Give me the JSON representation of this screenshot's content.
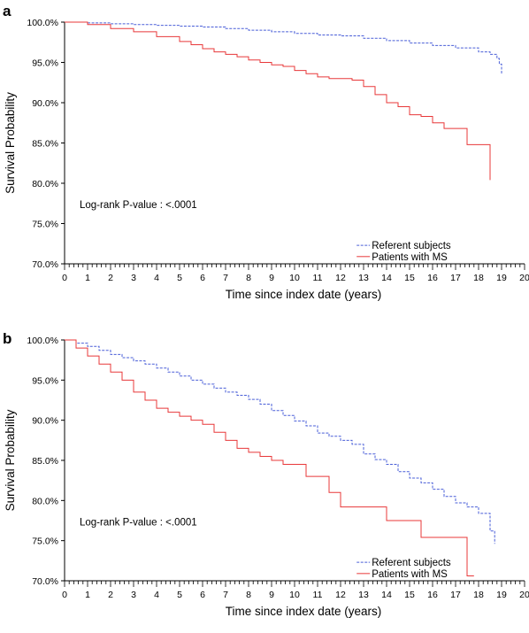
{
  "chart_data": [
    {
      "type": "line",
      "panel": "a",
      "xlabel": "Time since index date (years)",
      "ylabel": "Survival Probability",
      "xlim": [
        0,
        20
      ],
      "ylim": [
        70,
        100
      ],
      "x_ticks": [
        0,
        1,
        2,
        3,
        4,
        5,
        6,
        7,
        8,
        9,
        10,
        11,
        12,
        13,
        14,
        15,
        16,
        17,
        18,
        19,
        20
      ],
      "y_ticks": [
        "100.0%",
        "95.0%",
        "90.0%",
        "85.0%",
        "80.0%",
        "75.0%",
        "70.0%"
      ],
      "y_tick_values": [
        100,
        95,
        90,
        85,
        80,
        75,
        70
      ],
      "grid": false,
      "annotation": "Log-rank P-value : <.0001",
      "legend_position": "bottom-right",
      "series": [
        {
          "name": "Referent subjects",
          "color": "#4a5fd8",
          "style": "dashed",
          "x": [
            0,
            1,
            2,
            3,
            4,
            5,
            6,
            7,
            8,
            9,
            10,
            11,
            12,
            13,
            14,
            15,
            16,
            17,
            18,
            18.5,
            18.8,
            18.9,
            19.0
          ],
          "y": [
            100,
            99.9,
            99.8,
            99.7,
            99.6,
            99.5,
            99.4,
            99.2,
            99.0,
            98.8,
            98.6,
            98.4,
            98.3,
            98.0,
            97.7,
            97.4,
            97.1,
            96.8,
            96.3,
            96.0,
            95.5,
            94.8,
            93.6
          ]
        },
        {
          "name": "Patients with MS",
          "color": "#e8383a",
          "style": "solid",
          "x": [
            0,
            1,
            2,
            3,
            4,
            5,
            5.5,
            6,
            6.5,
            7,
            7.5,
            8,
            8.5,
            9,
            9.5,
            10,
            10.5,
            11,
            11.5,
            12,
            12.5,
            13,
            13.5,
            14,
            14.5,
            15,
            15.5,
            16,
            16.5,
            17,
            17.5,
            18,
            18.5
          ],
          "y": [
            100,
            99.7,
            99.2,
            98.8,
            98.2,
            97.6,
            97.2,
            96.7,
            96.3,
            96.0,
            95.7,
            95.3,
            95.0,
            94.7,
            94.5,
            94.0,
            93.6,
            93.2,
            93.0,
            93.0,
            92.8,
            92.0,
            91.0,
            90.0,
            89.5,
            88.5,
            88.3,
            87.5,
            86.8,
            86.8,
            84.8,
            84.8,
            80.4
          ]
        }
      ]
    },
    {
      "type": "line",
      "panel": "b",
      "xlabel": "Time since index date (years)",
      "ylabel": "Survival Probability",
      "xlim": [
        0,
        20
      ],
      "ylim": [
        70,
        100
      ],
      "x_ticks": [
        0,
        1,
        2,
        3,
        4,
        5,
        6,
        7,
        8,
        9,
        10,
        11,
        12,
        13,
        14,
        15,
        16,
        17,
        18,
        19,
        20
      ],
      "y_ticks": [
        "100.0%",
        "95.0%",
        "90.0%",
        "85.0%",
        "80.0%",
        "75.0%",
        "70.0%"
      ],
      "y_tick_values": [
        100,
        95,
        90,
        85,
        80,
        75,
        70
      ],
      "grid": false,
      "annotation": "Log-rank P-value : <.0001",
      "legend_position": "bottom-right",
      "series": [
        {
          "name": "Referent subjects",
          "color": "#4a5fd8",
          "style": "dashed",
          "x": [
            0,
            0.5,
            1,
            1.5,
            2,
            2.5,
            3,
            3.5,
            4,
            4.5,
            5,
            5.5,
            6,
            6.5,
            7,
            7.5,
            8,
            8.5,
            9,
            9.5,
            10,
            10.5,
            11,
            11.5,
            12,
            12.5,
            13,
            13.5,
            14,
            14.5,
            15,
            15.5,
            16,
            16.5,
            17,
            17.5,
            18,
            18.5,
            18.7
          ],
          "y": [
            100,
            99.6,
            99.2,
            98.7,
            98.2,
            97.8,
            97.4,
            97.0,
            96.5,
            96.0,
            95.5,
            95.0,
            94.5,
            94.0,
            93.5,
            93.1,
            92.6,
            92.0,
            91.2,
            90.6,
            89.9,
            89.3,
            88.4,
            88.0,
            87.5,
            87.0,
            85.8,
            85.1,
            84.5,
            83.6,
            82.8,
            82.2,
            81.4,
            80.5,
            79.7,
            79.2,
            78.4,
            76.2,
            74.6
          ]
        },
        {
          "name": "Patients with MS",
          "color": "#e8383a",
          "style": "solid",
          "x": [
            0,
            0.5,
            1,
            1.5,
            2,
            2.5,
            3,
            3.5,
            4,
            4.5,
            5,
            5.5,
            6,
            6.5,
            7,
            7.5,
            8,
            8.5,
            9,
            9.5,
            10,
            10.5,
            11,
            11.5,
            12,
            13,
            14,
            15,
            15.5,
            16,
            17,
            17.5,
            17.8
          ],
          "y": [
            100,
            99.0,
            98.0,
            97.0,
            96.0,
            95.0,
            93.5,
            92.5,
            91.5,
            91.0,
            90.5,
            90.0,
            89.5,
            88.5,
            87.5,
            86.5,
            86.0,
            85.5,
            85.0,
            84.5,
            84.5,
            83.0,
            83.0,
            81.0,
            79.2,
            79.2,
            77.5,
            77.5,
            75.4,
            75.4,
            75.4,
            70.6,
            70.6
          ]
        }
      ]
    }
  ],
  "colors": {
    "axis": "#000000",
    "referent": "#4a5fd8",
    "ms": "#e8383a"
  }
}
